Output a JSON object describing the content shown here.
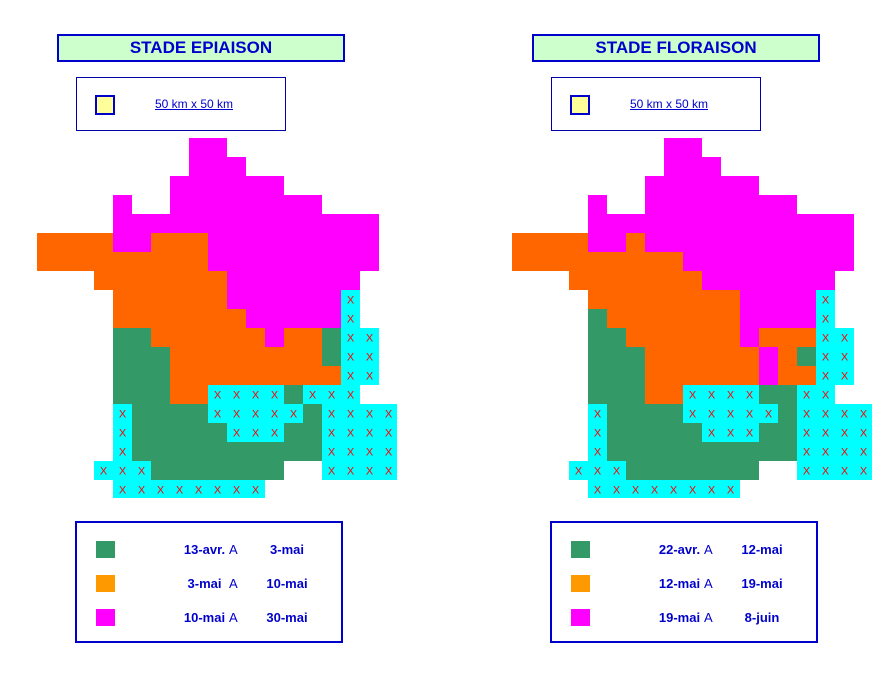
{
  "colors": {
    "green": "#339966",
    "orange": "#ff6600",
    "magenta": "#ff00ff",
    "cyan": "#00ffff",
    "cross": "#ff0000",
    "scale_swatch": "#ffff99"
  },
  "panels": [
    {
      "title": "STADE EPIAISON",
      "scale_label": "50 km x 50 km",
      "legend": [
        {
          "color": "#339966",
          "from": "13-avr.",
          "sep": "A",
          "to": "3-mai"
        },
        {
          "color": "#ff9900",
          "from": "3-mai",
          "sep": "A",
          "to": "10-mai"
        },
        {
          "color": "#ff00ff",
          "from": "10-mai",
          "sep": "A",
          "to": "30-mai"
        }
      ]
    },
    {
      "title": "STADE FLORAISON",
      "scale_label": "50 km x 50 km",
      "legend": [
        {
          "color": "#339966",
          "from": "22-avr.",
          "sep": "A",
          "to": "12-mai"
        },
        {
          "color": "#ff9900",
          "from": "12-mai",
          "sep": "A",
          "to": "19-mai"
        },
        {
          "color": "#ff00ff",
          "from": "19-mai",
          "sep": "A",
          "to": "8-juin"
        }
      ]
    }
  ],
  "map_grid": {
    "legend_codes": {
      "G": "green",
      "O": "orange",
      "M": "magenta",
      "C": "cyan with X",
      "B": "cyan"
    },
    "cross_symbol": "X",
    "epiaison_rows": [
      "........MM..........",
      "........MMM.........",
      ".......MMMMMM.......",
      "....M..MMMMMMMM.....",
      "....MMMMMMMMMMMMMM..",
      "OOOOMMOOOMMMMMMMMM..",
      "OOOOOOOOOMMMMMMMMM..",
      "...OOOOOOOMMMMMMM...",
      "....OOOOOOMMMMMMC...",
      "....OOOOOOOMMMMMC...",
      "....GGOOOOOOMOOGCC..",
      "....GGGOOOOOOOOGCC..",
      "....GGGOOOOOOOOOCC..",
      "....GGGOOCCCCGCCC...",
      "....CGGGGCCCCCGCCCC.",
      "....CGGGGGCCCGGCCCC.",
      "....CGGGGGGGGGGCCCC.",
      "...CCCGGGGGGG..CCCC.",
      "....CCCCCCCC........",
      "........CCC........."
    ],
    "floraison_rows": [
      "........MM..........",
      "........MMM.........",
      ".......MMMMMM.......",
      "....M..MMMMMMMM.....",
      "....MMMMMMMMMMMMMM..",
      "OOOOMMOMMMMMMMMMMM..",
      "OOOOOOOOOMMMMMMMMM..",
      "...OOOOOOOMMMMMMM...",
      "....OOOOOOOOMMMMC...",
      "....GOOOOOOOMMMMC...",
      "....GGOOOOOOMOOOCC..",
      "....GGGOOOOOOMOGCC..",
      "....GGGOOOOOOMOOCC..",
      "....GGGOOCCCCGGCC...",
      "....CGGGGCCCCCGCCCC.",
      "....CGGGGGCCCGGCCCC.",
      "....CGGGGGGGGGGCCCC.",
      "...CCCGGGGGGG..CCCC.",
      "....CCCCCCCC........",
      "........CCC........."
    ]
  }
}
